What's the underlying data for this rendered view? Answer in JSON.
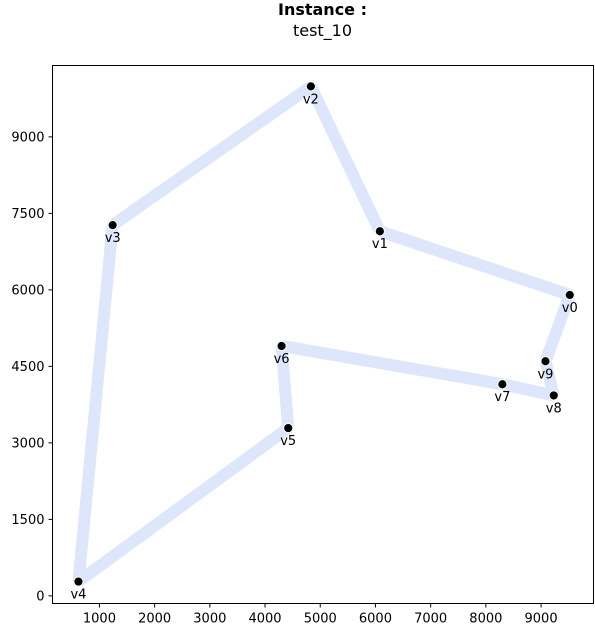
{
  "chart_data": {
    "type": "scatter",
    "title": "Instance :",
    "subtitle": "test_10",
    "xlabel": "",
    "ylabel": "",
    "xlim": [
      150,
      9950
    ],
    "ylim": [
      -150,
      10400
    ],
    "xticks": [
      1000,
      2000,
      3000,
      4000,
      5000,
      6000,
      7000,
      8000,
      9000
    ],
    "yticks": [
      0,
      1500,
      3000,
      4500,
      6000,
      7500,
      9000
    ],
    "grid": false,
    "route_color": "#dde6fa",
    "point_color": "#000000",
    "points": [
      {
        "name": "v0",
        "x": 9520,
        "y": 5900
      },
      {
        "name": "v1",
        "x": 6080,
        "y": 7150
      },
      {
        "name": "v2",
        "x": 4830,
        "y": 9990
      },
      {
        "name": "v3",
        "x": 1240,
        "y": 7270
      },
      {
        "name": "v4",
        "x": 620,
        "y": 280
      },
      {
        "name": "v5",
        "x": 4420,
        "y": 3290
      },
      {
        "name": "v6",
        "x": 4300,
        "y": 4900
      },
      {
        "name": "v7",
        "x": 8300,
        "y": 4150
      },
      {
        "name": "v8",
        "x": 9230,
        "y": 3930
      },
      {
        "name": "v9",
        "x": 9080,
        "y": 4600
      }
    ],
    "tour": [
      "v0",
      "v1",
      "v2",
      "v3",
      "v4",
      "v5",
      "v6",
      "v7",
      "v8",
      "v9",
      "v0"
    ]
  }
}
